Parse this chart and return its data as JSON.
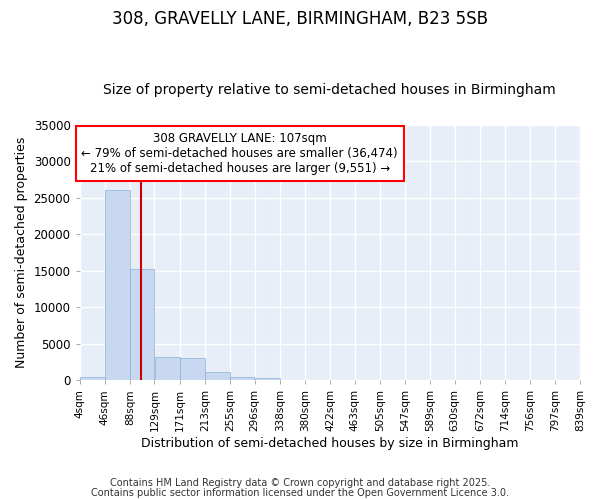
{
  "title": "308, GRAVELLY LANE, BIRMINGHAM, B23 5SB",
  "subtitle": "Size of property relative to semi-detached houses in Birmingham",
  "xlabel": "Distribution of semi-detached houses by size in Birmingham",
  "ylabel": "Number of semi-detached properties",
  "bins": [
    4,
    46,
    88,
    129,
    171,
    213,
    255,
    296,
    338,
    380,
    422,
    463,
    505,
    547,
    589,
    630,
    672,
    714,
    756,
    797,
    839
  ],
  "counts": [
    500,
    26100,
    15200,
    3150,
    3100,
    1150,
    450,
    280,
    70,
    25,
    8,
    4,
    2,
    1,
    1,
    0,
    0,
    0,
    0,
    0
  ],
  "bar_color": "#c8d8f0",
  "bar_edgecolor": "#8ab0d8",
  "vline_x": 107,
  "vline_color": "#cc0000",
  "ylim": [
    0,
    35000
  ],
  "annotation_text": "308 GRAVELLY LANE: 107sqm\n← 79% of semi-detached houses are smaller (36,474)\n21% of semi-detached houses are larger (9,551) →",
  "annotation_fontsize": 8.5,
  "footer1": "Contains HM Land Registry data © Crown copyright and database right 2025.",
  "footer2": "Contains public sector information licensed under the Open Government Licence 3.0.",
  "bg_color": "#ffffff",
  "plot_bg_color": "#e8eef8",
  "grid_color": "#ffffff",
  "title_fontsize": 12,
  "subtitle_fontsize": 10,
  "yticks": [
    0,
    5000,
    10000,
    15000,
    20000,
    25000,
    30000,
    35000
  ],
  "tick_labels": [
    "4sqm",
    "46sqm",
    "88sqm",
    "129sqm",
    "171sqm",
    "213sqm",
    "255sqm",
    "296sqm",
    "338sqm",
    "380sqm",
    "422sqm",
    "463sqm",
    "505sqm",
    "547sqm",
    "589sqm",
    "630sqm",
    "672sqm",
    "714sqm",
    "756sqm",
    "797sqm",
    "839sqm"
  ]
}
